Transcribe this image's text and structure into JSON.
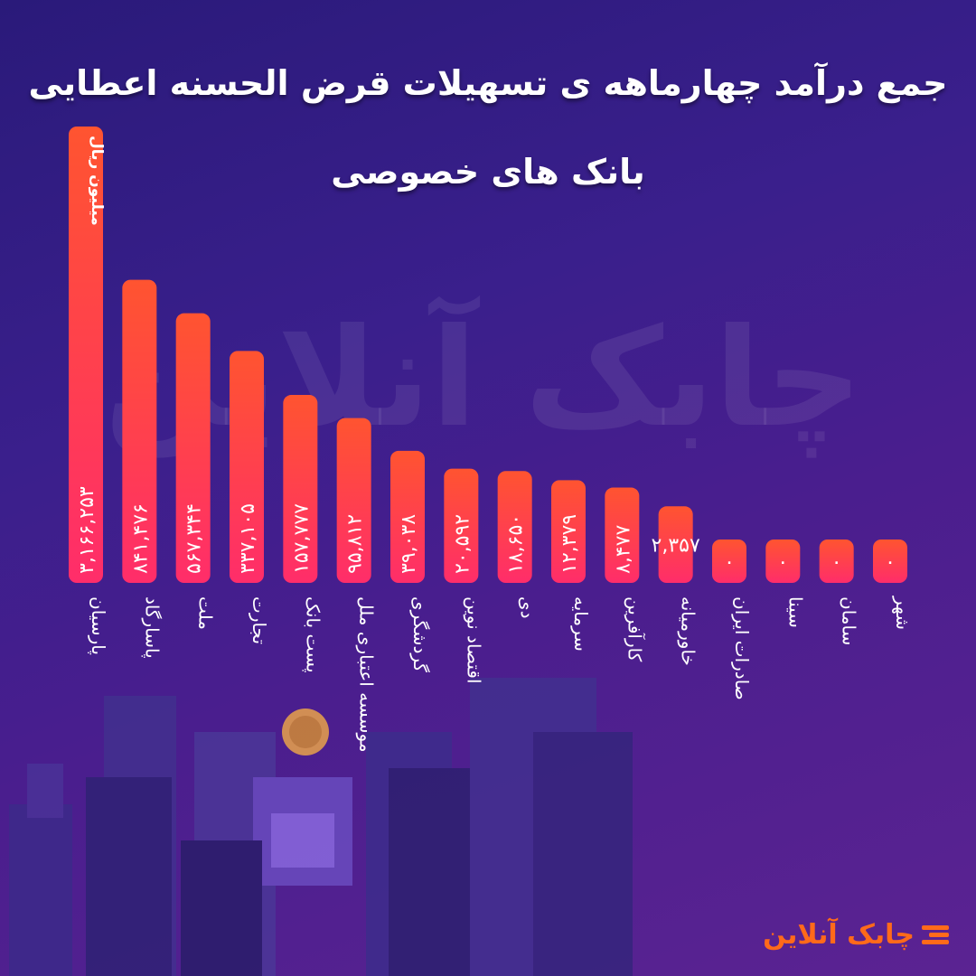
{
  "header": {
    "title_line1": "جمع درآمد چهارماهه ی تسهیلات قرض الحسنه اعطایی",
    "title_line2": "بانک های خصوصی"
  },
  "logo": {
    "text": "چابک آنلاین",
    "icon": "stripes-logo-icon",
    "color": "#ff6a1a"
  },
  "watermark": {
    "text": "چابک آنلاین"
  },
  "colors": {
    "bar_top": "#ff5430",
    "bar_bottom": "#ff2d6a",
    "label": "#ffffff"
  },
  "chart_data": {
    "type": "bar",
    "unit_label": "میلیون ریال",
    "categories": [
      "پارسیان",
      "پاسارگاد",
      "ملت",
      "تجارت",
      "پست بانک",
      "موسسه اعتباری ملل",
      "گردشگری",
      "اقتصاد نوین",
      "دی",
      "سرمایه",
      "کارآفرین",
      "خاورمیانه",
      "صادرات ایران",
      "سینا",
      "سامان",
      "شهر"
    ],
    "values": [
      3166253,
      841476,
      567344,
      337105,
      157777,
      95812,
      39038,
      20592,
      18650,
      12379,
      8477,
      2357,
      0,
      0,
      0,
      0
    ],
    "value_labels": [
      "۳,۱۶۶,۲۵۳",
      "۸۴۱,۴۷۶",
      "۵۶۷,۳۴۴",
      "۳۳۷,۱۰۵",
      "۱۵۷,۷۷۷",
      "۹۵,۸۱۲",
      "۳۹,۰۳۸",
      "۲۰,۵۹۲",
      "۱۸,۶۵۰",
      "۱۲,۳۷۹",
      "۸,۴۷۷",
      "۲,۳۵۷",
      "۰",
      "۰",
      "۰",
      "۰"
    ]
  }
}
